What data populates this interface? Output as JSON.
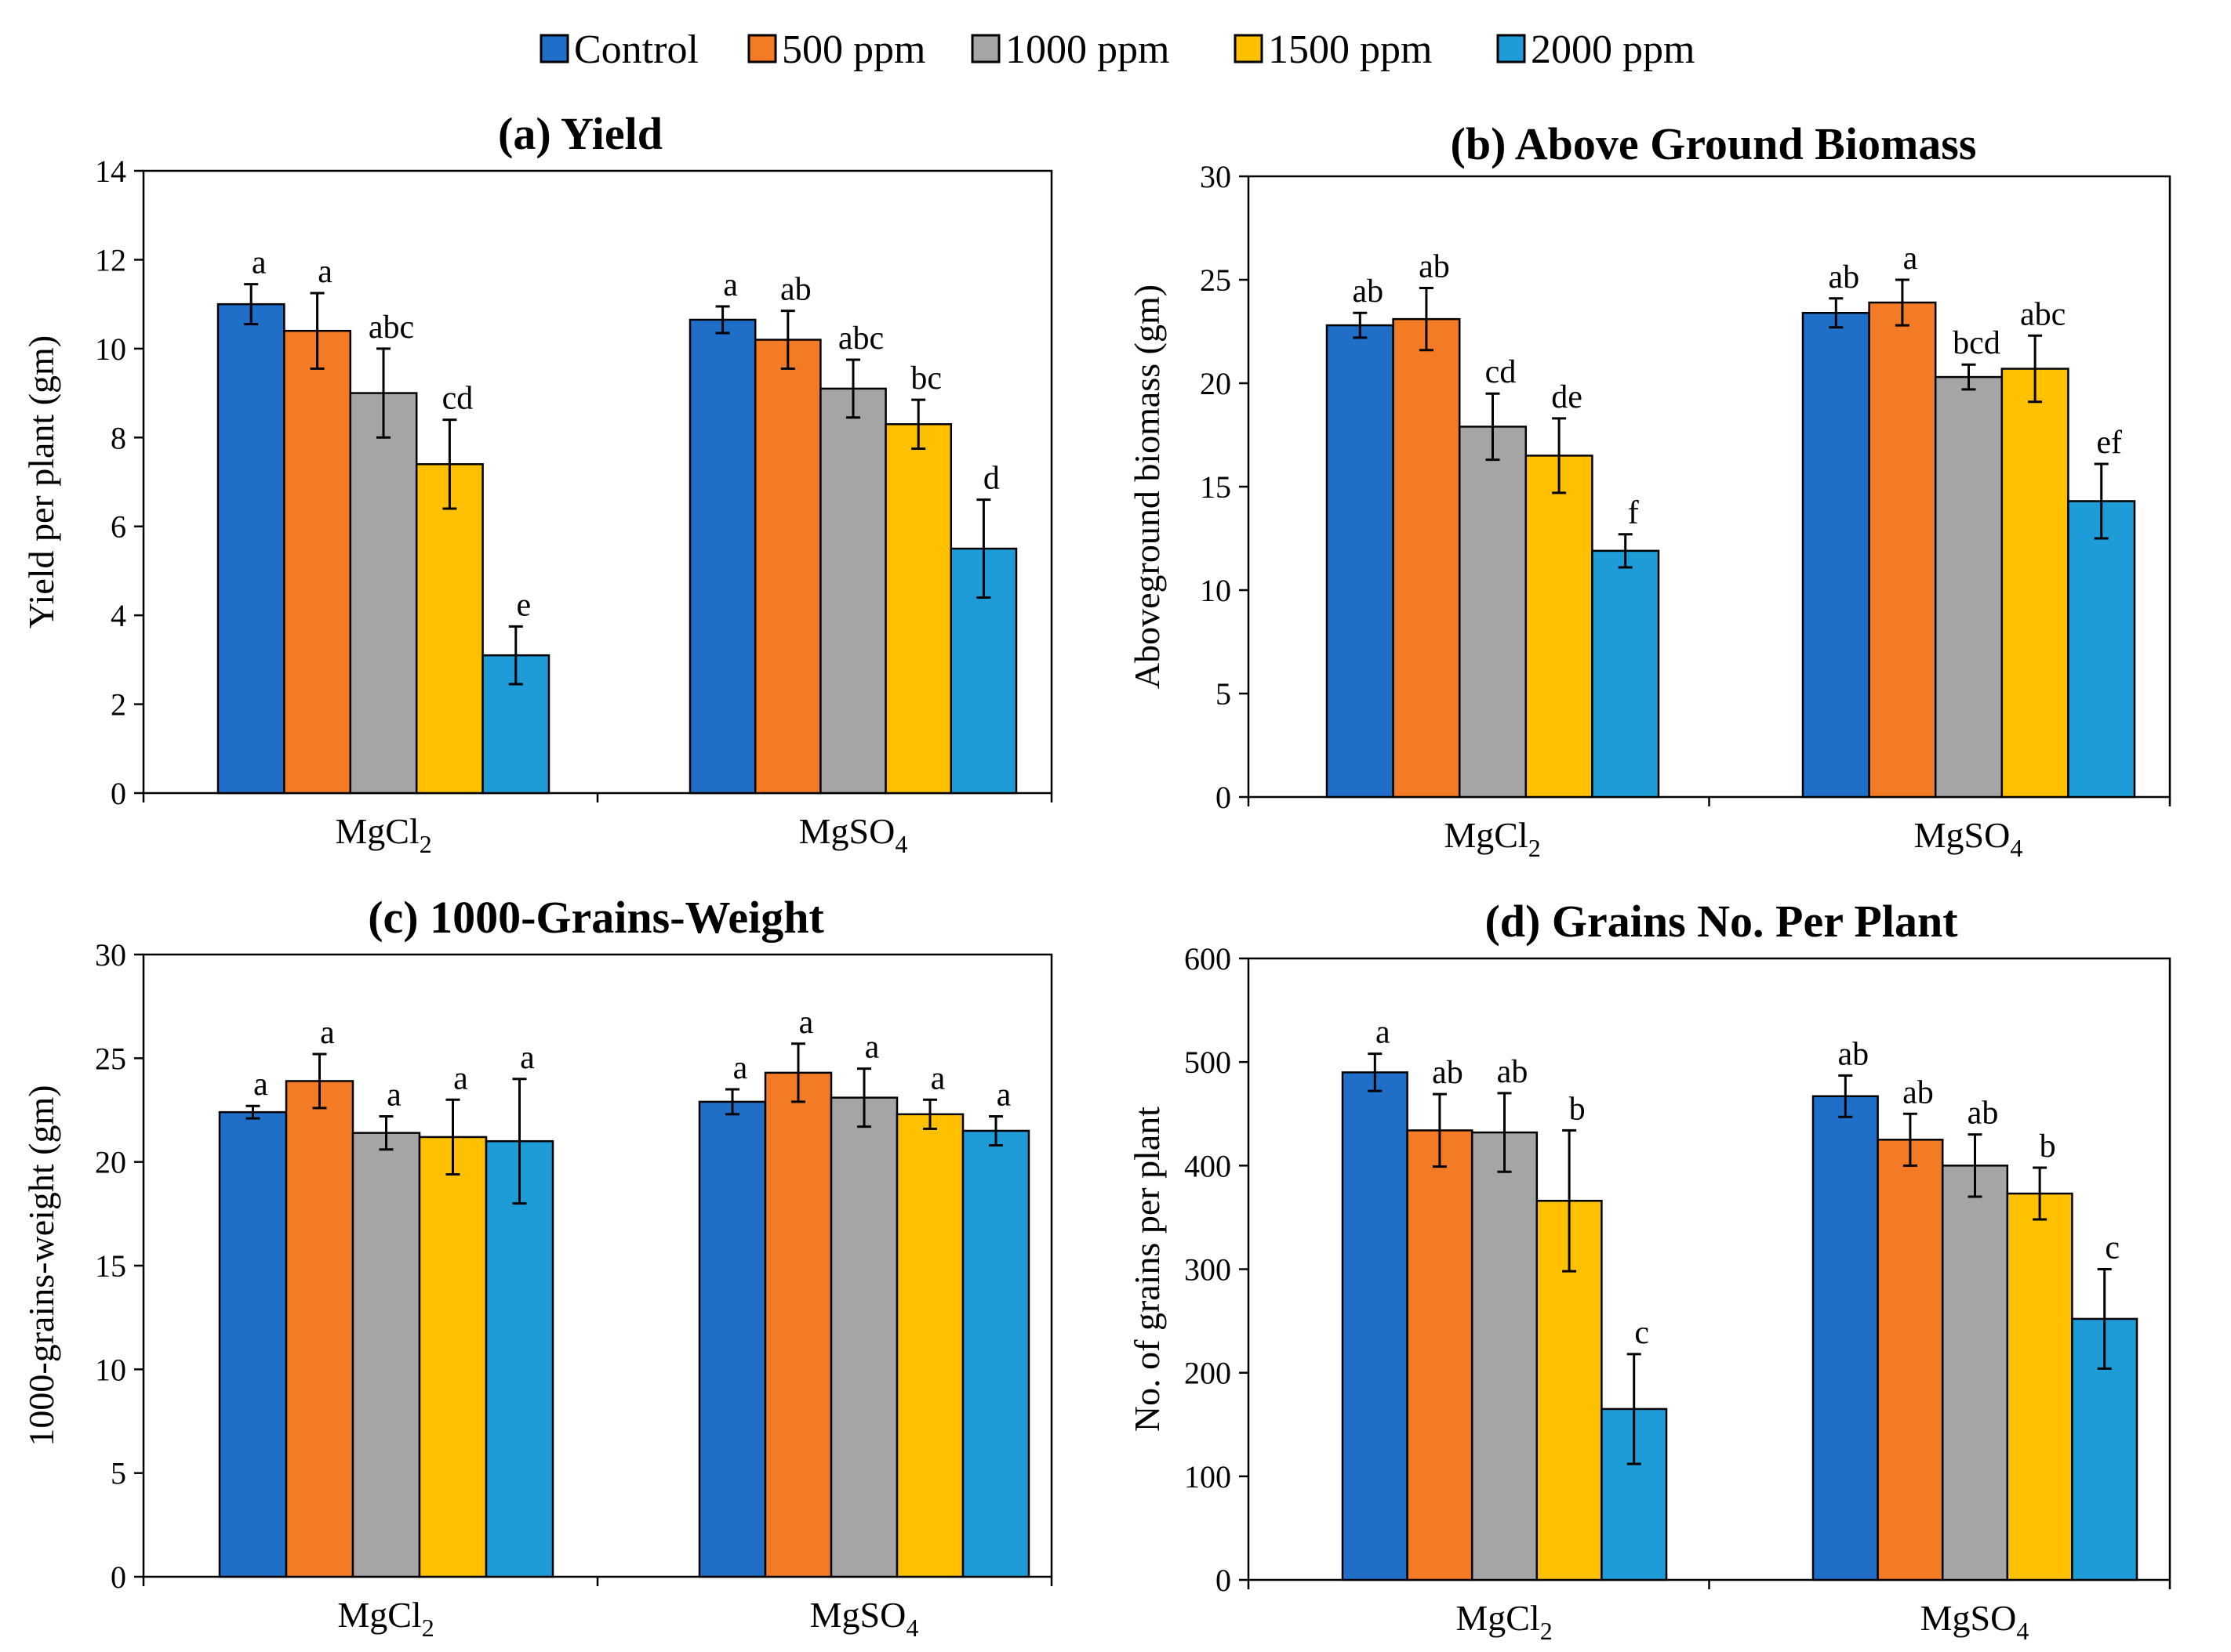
{
  "legend": {
    "items": [
      {
        "key": "control",
        "label": "Control",
        "color": "#1F6FC9"
      },
      {
        "key": "p500",
        "label": "500 ppm",
        "color": "#F47B25"
      },
      {
        "key": "p1000",
        "label": "1000 ppm",
        "color": "#A5A5A5"
      },
      {
        "key": "p1500",
        "label": "1500 ppm",
        "color": "#FFC000"
      },
      {
        "key": "p2000",
        "label": "2000 ppm",
        "color": "#1E9CD8"
      }
    ]
  },
  "chart_data": [
    {
      "id": "a",
      "type": "bar",
      "title": "(a) Yield",
      "ylabel": "Yield per plant  (gm)",
      "xlabel": "",
      "ylim": [
        0,
        14
      ],
      "yticks": [
        0,
        2,
        4,
        6,
        8,
        10,
        12,
        14
      ],
      "categories": [
        {
          "main": "MgCl",
          "sub": "2"
        },
        {
          "main": "MgSO",
          "sub": "4"
        }
      ],
      "series": [
        {
          "name": "Control",
          "values": [
            11.0,
            10.65
          ],
          "errors": [
            0.45,
            0.3
          ],
          "letters": [
            "a",
            "a"
          ]
        },
        {
          "name": "500 ppm",
          "values": [
            10.4,
            10.2
          ],
          "errors": [
            0.85,
            0.65
          ],
          "letters": [
            "a",
            "ab"
          ]
        },
        {
          "name": "1000 ppm",
          "values": [
            9.0,
            9.1
          ],
          "errors": [
            1.0,
            0.65
          ],
          "letters": [
            "abc",
            "abc"
          ]
        },
        {
          "name": "1500 ppm",
          "values": [
            7.4,
            8.3
          ],
          "errors": [
            1.0,
            0.55
          ],
          "letters": [
            "cd",
            "bc"
          ]
        },
        {
          "name": "2000 ppm",
          "values": [
            3.1,
            5.5
          ],
          "errors": [
            0.65,
            1.1
          ],
          "letters": [
            "e",
            "d"
          ]
        }
      ]
    },
    {
      "id": "b",
      "type": "bar",
      "title": "(b) Above Ground Biomass",
      "ylabel": "Aboveground  biomass  (gm)",
      "xlabel": "",
      "ylim": [
        0,
        30
      ],
      "yticks": [
        0,
        5,
        10,
        15,
        20,
        25,
        30
      ],
      "categories": [
        {
          "main": "MgCl",
          "sub": "2"
        },
        {
          "main": "MgSO",
          "sub": "4"
        }
      ],
      "series": [
        {
          "name": "Control",
          "values": [
            22.8,
            23.4
          ],
          "errors": [
            0.6,
            0.7
          ],
          "letters": [
            "ab",
            "ab"
          ]
        },
        {
          "name": "500 ppm",
          "values": [
            23.1,
            23.9
          ],
          "errors": [
            1.5,
            1.1
          ],
          "letters": [
            "ab",
            "a"
          ]
        },
        {
          "name": "1000 ppm",
          "values": [
            17.9,
            20.3
          ],
          "errors": [
            1.6,
            0.6
          ],
          "letters": [
            "cd",
            "bcd"
          ]
        },
        {
          "name": "1500 ppm",
          "values": [
            16.5,
            20.7
          ],
          "errors": [
            1.8,
            1.6
          ],
          "letters": [
            "de",
            "abc"
          ]
        },
        {
          "name": "2000 ppm",
          "values": [
            11.9,
            14.3
          ],
          "errors": [
            0.8,
            1.8
          ],
          "letters": [
            "f",
            "ef"
          ]
        }
      ]
    },
    {
      "id": "c",
      "type": "bar",
      "title": "(c) 1000-Grains-Weight",
      "ylabel": "1000-grains-weight  (gm)",
      "xlabel": "",
      "ylim": [
        0,
        30
      ],
      "yticks": [
        0,
        5,
        10,
        15,
        20,
        25,
        30
      ],
      "categories": [
        {
          "main": "MgCl",
          "sub": "2"
        },
        {
          "main": "MgSO",
          "sub": "4"
        }
      ],
      "series": [
        {
          "name": "Control",
          "values": [
            22.4,
            22.9
          ],
          "errors": [
            0.3,
            0.6
          ],
          "letters": [
            "a",
            "a"
          ]
        },
        {
          "name": "500 ppm",
          "values": [
            23.9,
            24.3
          ],
          "errors": [
            1.3,
            1.4
          ],
          "letters": [
            "a",
            "a"
          ]
        },
        {
          "name": "1000 ppm",
          "values": [
            21.4,
            23.1
          ],
          "errors": [
            0.8,
            1.4
          ],
          "letters": [
            "a",
            "a"
          ]
        },
        {
          "name": "1500 ppm",
          "values": [
            21.2,
            22.3
          ],
          "errors": [
            1.8,
            0.7
          ],
          "letters": [
            "a",
            "a"
          ]
        },
        {
          "name": "2000 ppm",
          "values": [
            21.0,
            21.5
          ],
          "errors": [
            3.0,
            0.7
          ],
          "letters": [
            "a",
            "a"
          ]
        }
      ]
    },
    {
      "id": "d",
      "type": "bar",
      "title": "(d) Grains No. Per Plant",
      "ylabel": "No. of grains per plant",
      "xlabel": "",
      "ylim": [
        0,
        600
      ],
      "yticks": [
        0,
        100,
        200,
        300,
        400,
        500,
        600
      ],
      "categories": [
        {
          "main": "MgCl",
          "sub": "2"
        },
        {
          "main": "MgSO",
          "sub": "4"
        }
      ],
      "series": [
        {
          "name": "Control",
          "values": [
            490,
            467
          ],
          "errors": [
            18,
            20
          ],
          "letters": [
            "a",
            "ab"
          ]
        },
        {
          "name": "500 ppm",
          "values": [
            434,
            425
          ],
          "errors": [
            35,
            25
          ],
          "letters": [
            "ab",
            "ab"
          ]
        },
        {
          "name": "1000 ppm",
          "values": [
            432,
            400
          ],
          "errors": [
            38,
            30
          ],
          "letters": [
            "ab",
            "ab"
          ]
        },
        {
          "name": "1500 ppm",
          "values": [
            366,
            373
          ],
          "errors": [
            68,
            25
          ],
          "letters": [
            "b",
            "b"
          ]
        },
        {
          "name": "2000 ppm",
          "values": [
            165,
            252
          ],
          "errors": [
            53,
            48
          ],
          "letters": [
            "c",
            "c"
          ]
        }
      ]
    }
  ]
}
